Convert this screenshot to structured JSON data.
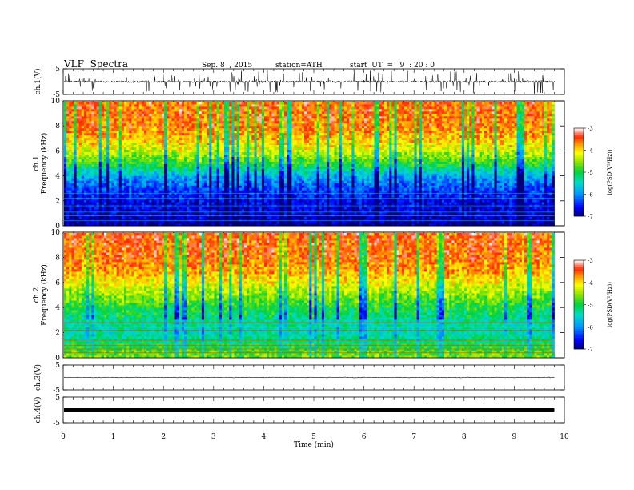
{
  "header": {
    "title": "VLF  Spectra",
    "date": "Sep. 8  , 2015",
    "station": "station=ATH",
    "start_ut": "start  UT  =   9  : 20 : 0"
  },
  "chart_data": [
    {
      "type": "line",
      "panel": "ch1-waveform",
      "ylabel": "ch.1(V)",
      "ylim": [
        -5,
        5
      ],
      "yticks": [
        "5",
        "-5"
      ],
      "xlim": [
        0,
        10
      ],
      "data_end_x": 9.8,
      "baseline": 0,
      "spike_max_amplitude": 4.5,
      "color": "#000000"
    },
    {
      "type": "heatmap",
      "panel": "ch1-spectrogram",
      "ylabel": "ch.1\nFrequency (kHz)",
      "ylim": [
        0,
        10
      ],
      "yticks": [
        "0",
        "2",
        "4",
        "6",
        "8",
        "10"
      ],
      "xlim": [
        0,
        10
      ],
      "data_end_x": 9.8,
      "description_profile_logpsd": [
        [
          0,
          -6.9
        ],
        [
          1,
          -6.7
        ],
        [
          2,
          -6.6
        ],
        [
          3,
          -6.3
        ],
        [
          4,
          -5.8
        ],
        [
          5,
          -4.9
        ],
        [
          6,
          -4.3
        ],
        [
          7,
          -3.9
        ],
        [
          8,
          -3.6
        ],
        [
          10,
          -3.5
        ]
      ],
      "colorbar": {
        "label": "log(PSD(V²/Hz))",
        "range": [
          -7,
          -3
        ],
        "ticks": [
          "-3",
          "-4",
          "-5",
          "-6",
          "-7"
        ]
      }
    },
    {
      "type": "heatmap",
      "panel": "ch2-spectrogram",
      "ylabel": "ch.2\nFrequency (kHz)",
      "ylim": [
        0,
        10
      ],
      "yticks": [
        "0",
        "2",
        "4",
        "6",
        "8",
        "10"
      ],
      "xlim": [
        0,
        10
      ],
      "data_end_x": 9.8,
      "description_profile_logpsd": [
        [
          0,
          -4.6
        ],
        [
          1,
          -5.0
        ],
        [
          2,
          -5.4
        ],
        [
          3,
          -5.3
        ],
        [
          4,
          -5.0
        ],
        [
          5,
          -4.6
        ],
        [
          6,
          -4.2
        ],
        [
          7,
          -3.8
        ],
        [
          8,
          -3.6
        ],
        [
          10,
          -3.5
        ]
      ],
      "colorbar": {
        "label": "log(PSD(V²/Hz))",
        "range": [
          -7,
          -3
        ],
        "ticks": [
          "-3",
          "-4",
          "-5",
          "-6",
          "-7"
        ]
      }
    },
    {
      "type": "line",
      "panel": "ch3-waveform",
      "ylabel": "ch.3(V)",
      "ylim": [
        -5,
        5
      ],
      "yticks": [
        "5",
        "-5"
      ],
      "xlim": [
        0,
        10
      ],
      "data_end_x": 9.8,
      "baseline": 0,
      "color": "#000000"
    },
    {
      "type": "line",
      "panel": "ch4-waveform",
      "ylabel": "ch.4(V)",
      "ylim": [
        -5,
        5
      ],
      "yticks": [
        "5",
        "-5"
      ],
      "xlim": [
        0,
        10
      ],
      "data_end_x": 9.8,
      "baseline": 0,
      "color": "#000000"
    }
  ],
  "xaxis": {
    "label": "Time  (min)",
    "ticks": [
      "0",
      "1",
      "2",
      "3",
      "4",
      "5",
      "6",
      "7",
      "8",
      "9",
      "10"
    ]
  }
}
